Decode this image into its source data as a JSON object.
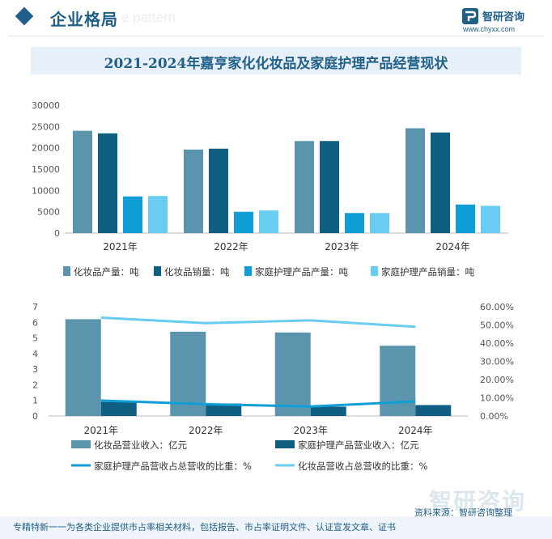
{
  "header": {
    "title": "企业格局",
    "watermark": "e pattern",
    "logo_name": "智研咨询",
    "logo_url": "www.chyxx.com"
  },
  "chart_title": "2021-2024年嘉亨家化化妆品及家庭护理产品经营现状",
  "colors": {
    "cosmetic_output": "#5b95ad",
    "cosmetic_sales": "#0f5f82",
    "household_output": "#0f9fd6",
    "household_sales": "#68cdf0",
    "brand": "#1f5f88"
  },
  "chart_data": [
    {
      "type": "bar",
      "categories": [
        "2021年",
        "2022年",
        "2023年",
        "2024年"
      ],
      "ylim": [
        0,
        30000
      ],
      "yticks": [
        "0",
        "5000",
        "10000",
        "15000",
        "20000",
        "25000",
        "30000"
      ],
      "series": [
        {
          "name": "化妆品产量：吨",
          "values": [
            24000,
            19600,
            21600,
            24600
          ]
        },
        {
          "name": "化妆品销量：吨",
          "values": [
            23400,
            19800,
            21600,
            23600
          ]
        },
        {
          "name": "家庭护理产品产量：吨",
          "values": [
            8600,
            5000,
            4700,
            6700
          ]
        },
        {
          "name": "家庭护理产品销量：吨",
          "values": [
            8700,
            5300,
            4700,
            6400
          ]
        }
      ]
    },
    {
      "type": "bar",
      "categories": [
        "2021年",
        "2022年",
        "2023年",
        "2024年"
      ],
      "ylim": [
        0,
        7
      ],
      "yticks": [
        "0",
        "1",
        "2",
        "3",
        "4",
        "5",
        "6",
        "7"
      ],
      "y2lim": [
        0,
        60
      ],
      "y2ticks": [
        "0.00%",
        "10.00%",
        "20.00%",
        "30.00%",
        "40.00%",
        "50.00%",
        "60.00%"
      ],
      "series": [
        {
          "name": "化妆品营业收入：亿元",
          "type": "bar",
          "values": [
            6.2,
            5.4,
            5.35,
            4.5
          ]
        },
        {
          "name": "家庭护理产品营业收入：亿元",
          "type": "bar",
          "values": [
            0.9,
            0.8,
            0.6,
            0.7
          ]
        },
        {
          "name": "家庭护理产品营收占总营收的比重：%",
          "type": "line",
          "axis": "right",
          "values": [
            8.5,
            6.5,
            5.2,
            8.0
          ]
        },
        {
          "name": "化妆品营收占总营收的比重：%",
          "type": "line",
          "axis": "right",
          "values": [
            54.0,
            51.0,
            52.5,
            49.0
          ]
        }
      ]
    }
  ],
  "footer": {
    "source": "资料来源：智研咨询整理",
    "note": "专精特新一一为各类企业提供市占率相关材料，包括报告、市占率证明文件、认证宣发文章、证书",
    "watermark": "智研咨询"
  }
}
